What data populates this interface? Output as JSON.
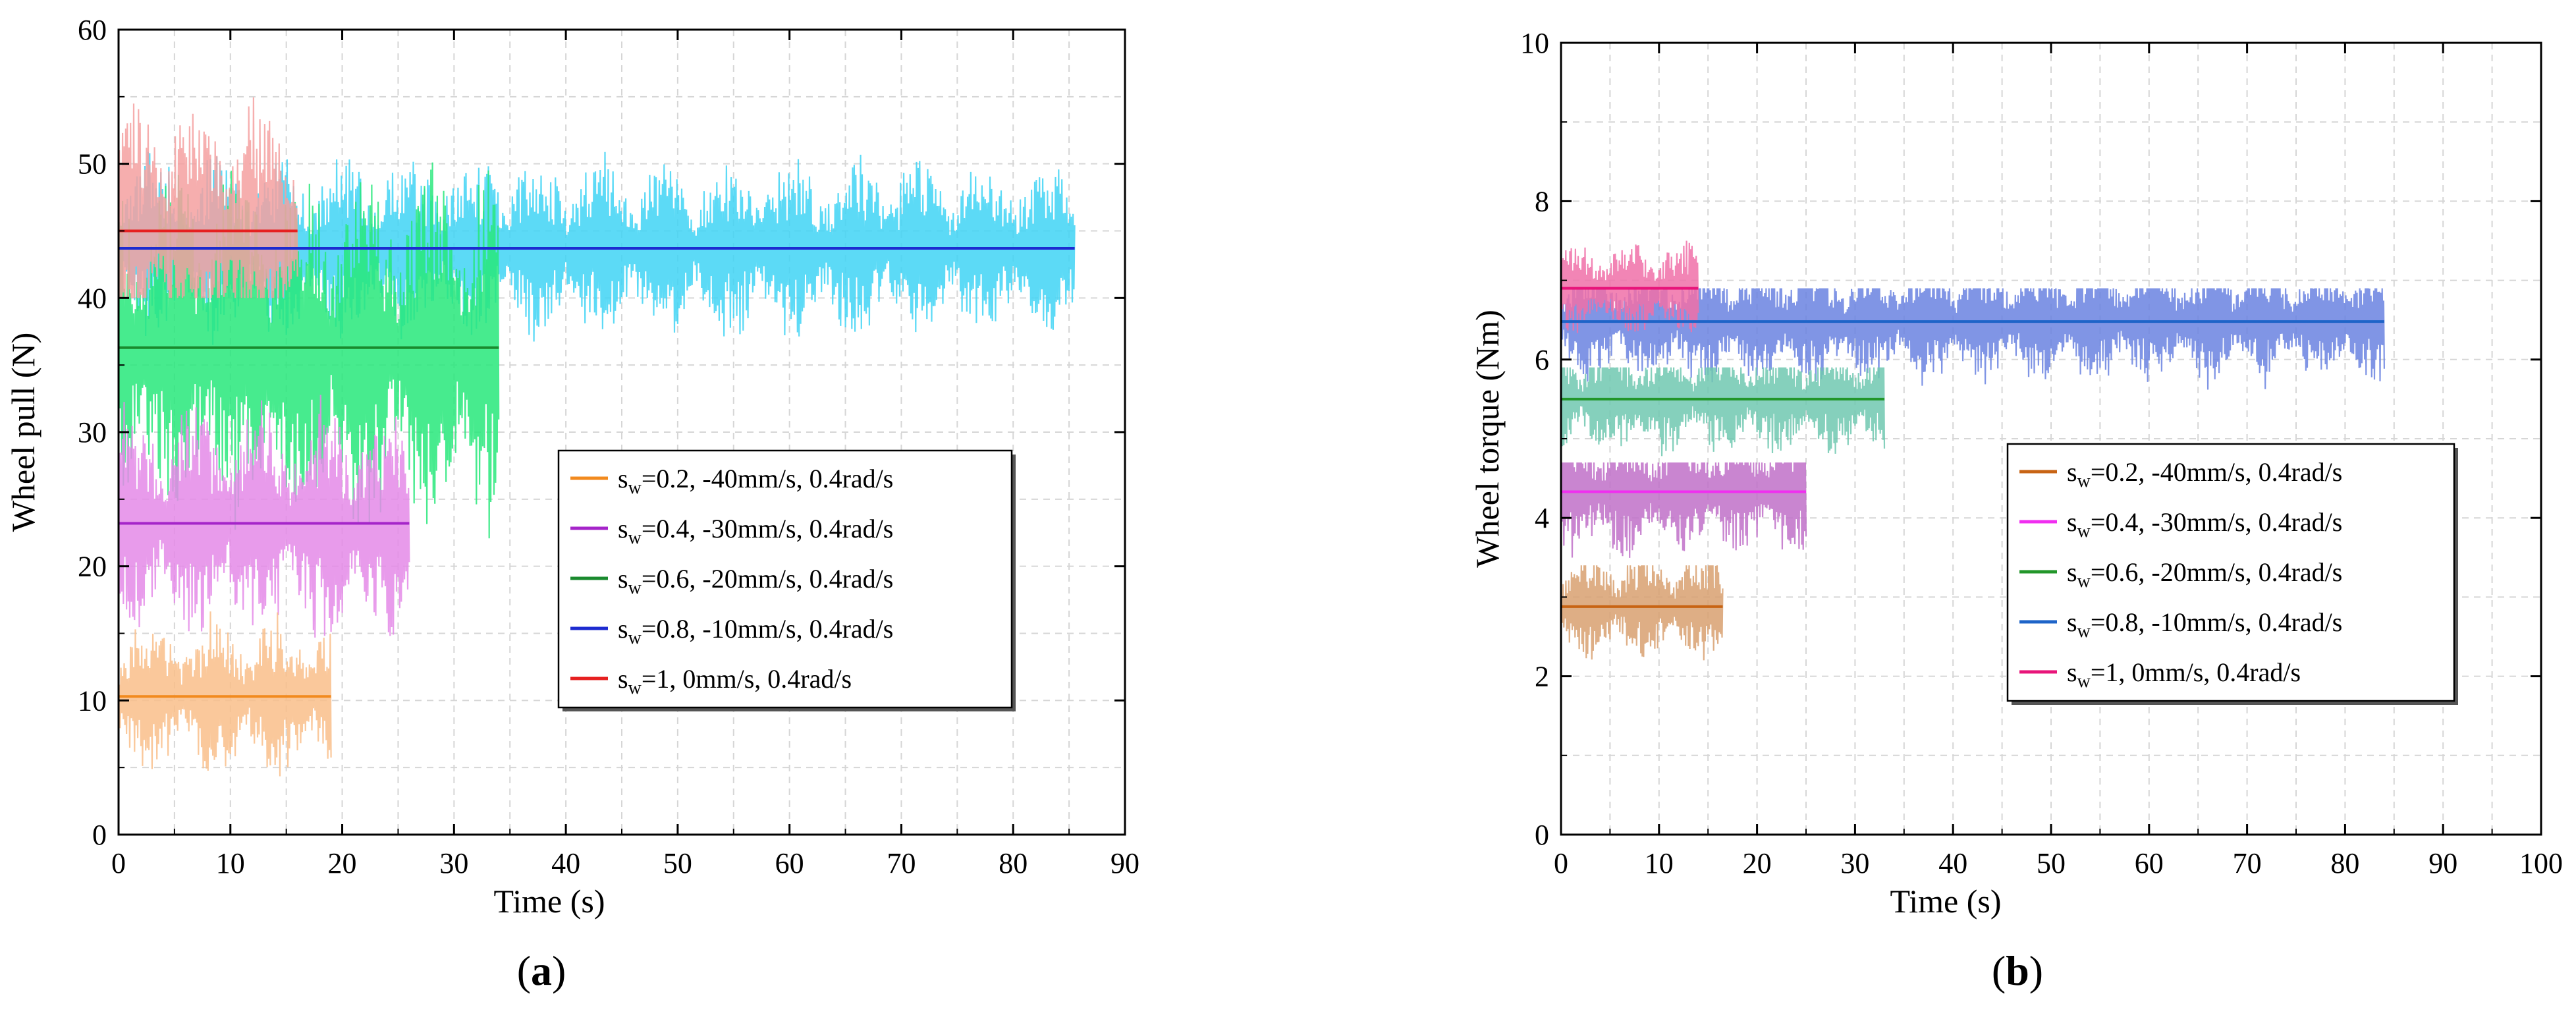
{
  "chart_data": [
    {
      "type": "line",
      "panel_label_open": "(",
      "panel_label_letter": "a",
      "panel_label_close": ")",
      "xlabel": "Time (s)",
      "ylabel": "Wheel pull (N)",
      "xlim": [
        0,
        90
      ],
      "ylim": [
        0,
        60
      ],
      "xticks": [
        0,
        10,
        20,
        30,
        40,
        50,
        60,
        70,
        80,
        90
      ],
      "yticks": [
        0,
        10,
        20,
        30,
        40,
        50,
        60
      ],
      "grid": true,
      "legend_position": "center-right",
      "series": [
        {
          "name": "s_w=0.2, -40mm/s, 0.4rad/s",
          "sym": "s",
          "sub": "w",
          "rest": "=0.2, -40mm/s, 0.4rad/s",
          "raw_color": "#f9be8a",
          "mean_color": "#f28a1e",
          "mean": 10.3,
          "t_end": 19,
          "min": 4,
          "max": 17
        },
        {
          "name": "s_w=0.4, -30mm/s, 0.4rad/s",
          "sym": "s",
          "sub": "w",
          "rest": "=0.4, -30mm/s, 0.4rad/s",
          "raw_color": "#e48ae8",
          "mean_color": "#a524c9",
          "mean": 23.2,
          "t_end": 26,
          "min": 13,
          "max": 33
        },
        {
          "name": "s_w=0.6, -20mm/s, 0.4rad/s",
          "sym": "s",
          "sub": "w",
          "rest": "=0.6, -20mm/s, 0.4rad/s",
          "raw_color": "#27e87a",
          "mean_color": "#1a8a2e",
          "mean": 36.3,
          "t_end": 34,
          "min": 21,
          "max": 50.5
        },
        {
          "name": "s_w=0.8, -10mm/s, 0.4rad/s",
          "sym": "s",
          "sub": "w",
          "rest": "=0.8, -10mm/s, 0.4rad/s",
          "raw_color": "#3fd4f4",
          "mean_color": "#1d2bd0",
          "mean": 43.7,
          "t_end": 85.5,
          "min": 36.5,
          "max": 51.5
        },
        {
          "name": "s_w=1, 0mm/s, 0.4rad/s",
          "sym": "s",
          "sub": "w",
          "rest": "=1, 0mm/s, 0.4rad/s",
          "raw_color": "#f4a0a0",
          "mean_color": "#e62020",
          "mean": 45.0,
          "t_end": 16,
          "min": 40,
          "max": 56
        }
      ]
    },
    {
      "type": "line",
      "panel_label_open": "(",
      "panel_label_letter": "b",
      "panel_label_close": ")",
      "xlabel": "Time (s)",
      "ylabel": "Wheel torque (Nm)",
      "xlim": [
        0,
        100
      ],
      "ylim": [
        0,
        10
      ],
      "xticks": [
        0,
        10,
        20,
        30,
        40,
        50,
        60,
        70,
        80,
        90,
        100
      ],
      "yticks": [
        0,
        2,
        4,
        6,
        8,
        10
      ],
      "grid": true,
      "legend_position": "center-right",
      "series": [
        {
          "name": "s_w=0.2, -40mm/s, 0.4rad/s",
          "sym": "s",
          "sub": "w",
          "rest": "=0.2, -40mm/s, 0.4rad/s",
          "raw_color": "#d8a070",
          "mean_color": "#c86414",
          "mean": 2.88,
          "t_end": 16.5,
          "min": 2.1,
          "max": 3.4
        },
        {
          "name": "s_w=0.4, -30mm/s, 0.4rad/s",
          "sym": "s",
          "sub": "w",
          "rest": "=0.4, -30mm/s, 0.4rad/s",
          "raw_color": "#c070c8",
          "mean_color": "#f02ef0",
          "mean": 4.33,
          "t_end": 25,
          "min": 3.4,
          "max": 4.7
        },
        {
          "name": "s_w=0.6, -20mm/s, 0.4rad/s",
          "sym": "s",
          "sub": "w",
          "rest": "=0.6, -20mm/s, 0.4rad/s",
          "raw_color": "#70c8b0",
          "mean_color": "#22962a",
          "mean": 5.5,
          "t_end": 33,
          "min": 4.7,
          "max": 5.9
        },
        {
          "name": "s_w=0.8, -10mm/s, 0.4rad/s",
          "sym": "s",
          "sub": "w",
          "rest": "=0.8, -10mm/s, 0.4rad/s",
          "raw_color": "#6a82e0",
          "mean_color": "#1e64c8",
          "mean": 6.48,
          "t_end": 84,
          "min": 5.6,
          "max": 6.9
        },
        {
          "name": "s_w=1, 0mm/s, 0.4rad/s",
          "sym": "s",
          "sub": "w",
          "rest": "=1, 0mm/s, 0.4rad/s",
          "raw_color": "#f070a8",
          "mean_color": "#e8147a",
          "mean": 6.9,
          "t_end": 14,
          "min": 6.2,
          "max": 7.5
        }
      ]
    }
  ]
}
